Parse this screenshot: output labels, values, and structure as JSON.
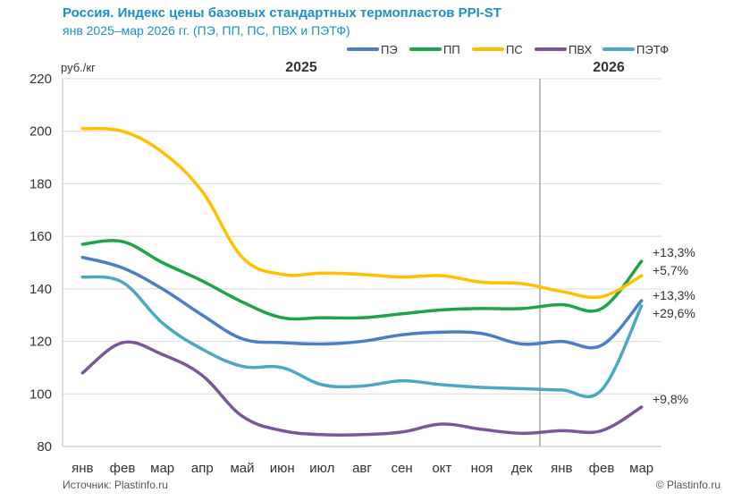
{
  "title": "Россия. Индекс цены базовых стандартных термопластов PPI-ST",
  "subtitle": "янв 2025–мар 2026 гг. (ПЭ, ПП, ПС, ПВХ и ПЭТФ)",
  "source": "Источник: Plastinfo.ru",
  "copyright": "© Plastinfo.ru",
  "chart_data": {
    "type": "line",
    "ylabel": "руб./кг",
    "ylim": [
      80,
      220
    ],
    "yticks": [
      80,
      100,
      120,
      140,
      160,
      180,
      200,
      220
    ],
    "categories": [
      "янв",
      "фев",
      "мар",
      "апр",
      "май",
      "июн",
      "июл",
      "авг",
      "сен",
      "окт",
      "ноя",
      "дек",
      "янв",
      "фев",
      "мар"
    ],
    "year_labels": [
      "2025",
      "2026"
    ],
    "series": [
      {
        "name": "ПЭ",
        "color": "#4a7fc8",
        "values": [
          152,
          148,
          140,
          130,
          121,
          119.5,
          119,
          120,
          122.5,
          123.5,
          123,
          119,
          120,
          118.5,
          135.5
        ],
        "change": "+13,3%"
      },
      {
        "name": "ПП",
        "color": "#1fa34a",
        "values": [
          157,
          158,
          150,
          143,
          135,
          129,
          129,
          129,
          130.5,
          132,
          132.5,
          132.5,
          134,
          132.5,
          150.5
        ],
        "change": "+13,3%"
      },
      {
        "name": "ПС",
        "color": "#ffc000",
        "values": [
          201,
          200,
          192,
          177,
          152,
          145.5,
          146,
          145.5,
          144.5,
          145,
          142.5,
          142,
          139,
          137,
          145
        ],
        "change": "+5,7%"
      },
      {
        "name": "ПВХ",
        "color": "#7b569c",
        "values": [
          108,
          119.5,
          115,
          107,
          91.5,
          86,
          84.5,
          84.5,
          85.5,
          88.5,
          86.5,
          85,
          86,
          86,
          95
        ],
        "change": "+9,8%"
      },
      {
        "name": "ПЭТФ",
        "color": "#4aa8c2",
        "values": [
          144.5,
          142.5,
          127,
          117,
          110.5,
          110,
          103.5,
          103,
          105,
          103.5,
          102.5,
          102,
          101.5,
          101.5,
          133.5
        ],
        "change": "+29,6%"
      }
    ]
  }
}
